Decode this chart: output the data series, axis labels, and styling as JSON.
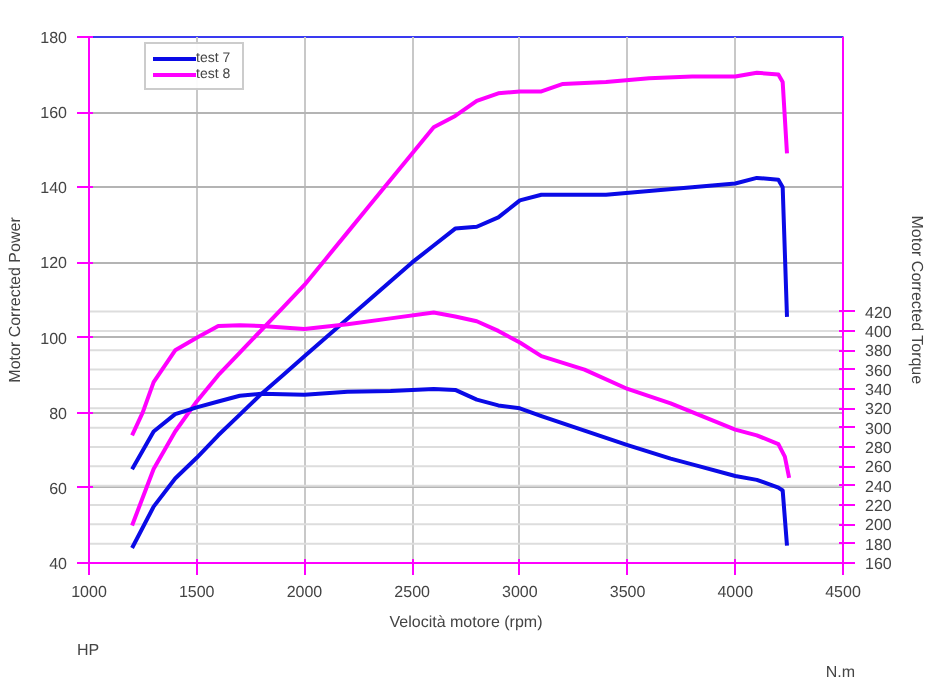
{
  "chart_data": {
    "type": "line",
    "xlabel": "Velocità motore (rpm)",
    "ylabel": "Motor Corrected Power",
    "y2label": "Motor Corrected Torque",
    "annotations": [
      "HP",
      "N.m"
    ],
    "xlim": [
      1000,
      4500
    ],
    "xticks": [
      1000,
      1500,
      2000,
      2500,
      3000,
      3500,
      4000,
      4500
    ],
    "ylim": [
      40,
      180
    ],
    "yticks": [
      40,
      60,
      80,
      100,
      120,
      140,
      160,
      180
    ],
    "y2lim": [
      160,
      704
    ],
    "y2ticks": [
      160,
      180,
      200,
      220,
      240,
      260,
      280,
      300,
      320,
      340,
      360,
      380,
      400,
      420
    ],
    "grid": true,
    "legend": "top left",
    "line_style": "solid",
    "series": [
      {
        "name": "test 7",
        "color": "#0a0ae6",
        "x": [
          1200,
          1300,
          1400,
          1500,
          1600,
          1700,
          1800,
          1900,
          2000,
          2100,
          2200,
          2300,
          2400,
          2500,
          2600,
          2700,
          2800,
          2900,
          3000,
          3100,
          3200,
          3400,
          3600,
          3800,
          4000,
          4100,
          4200,
          4220,
          4240
        ],
        "values": [
          44,
          55,
          62.5,
          68,
          74,
          79.5,
          85,
          90,
          95,
          100,
          105,
          110,
          115,
          120,
          124.5,
          129,
          129.5,
          132,
          136.5,
          138,
          138,
          138,
          139,
          140,
          141,
          142.5,
          142,
          140,
          105.5
        ]
      },
      {
        "name": "test 8",
        "color": "#ff00ff",
        "x": [
          1200,
          1300,
          1400,
          1500,
          1600,
          1700,
          1800,
          1900,
          2000,
          2100,
          2200,
          2300,
          2400,
          2500,
          2600,
          2700,
          2800,
          2900,
          3000,
          3100,
          3200,
          3400,
          3600,
          3800,
          4000,
          4100,
          4200,
          4220,
          4240
        ],
        "values": [
          50,
          65,
          75,
          83,
          90,
          96,
          102,
          108,
          114,
          121,
          128,
          135,
          142,
          149,
          156,
          159,
          163,
          165,
          165.5,
          165.5,
          167.5,
          168,
          169,
          169.5,
          169.5,
          170.5,
          170,
          168,
          149
        ]
      },
      {
        "color": "#0a0ae6",
        "axis": "y2",
        "x": [
          1200,
          1300,
          1400,
          1500,
          1600,
          1700,
          1800,
          2000,
          2200,
          2400,
          2600,
          2700,
          2800,
          2900,
          3000,
          3100,
          3300,
          3500,
          3700,
          3800,
          4000,
          4100,
          4200,
          4220,
          4240
        ],
        "values": [
          257,
          296,
          314,
          321,
          327,
          333,
          335,
          334,
          337,
          338,
          340,
          339,
          329,
          323,
          320,
          312,
          297,
          282,
          268,
          262,
          250,
          246,
          238,
          235,
          178
        ]
      },
      {
        "color": "#ff00ff",
        "axis": "y2",
        "x": [
          1200,
          1250,
          1300,
          1400,
          1500,
          1600,
          1700,
          1800,
          2000,
          2200,
          2400,
          2600,
          2700,
          2800,
          2900,
          3000,
          3100,
          3300,
          3500,
          3700,
          3900,
          4000,
          4100,
          4200,
          4230,
          4250
        ],
        "values": [
          292,
          316,
          347,
          380,
          393,
          405,
          406,
          405,
          402,
          407,
          413,
          419,
          415,
          410,
          400,
          388,
          374,
          360,
          340,
          325,
          307,
          298,
          292,
          283,
          270,
          248
        ]
      }
    ]
  }
}
